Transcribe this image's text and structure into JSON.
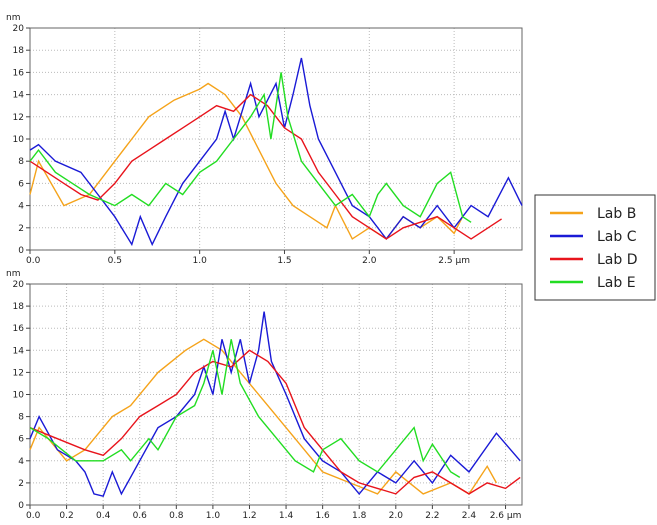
{
  "chart_data": [
    {
      "type": "line",
      "y_unit": "nm",
      "legend": "right",
      "grid": true,
      "xlim": [
        0,
        2.9
      ],
      "ylim": [
        0,
        20
      ],
      "xticks": [
        {
          "value": 0,
          "label": "0.0"
        },
        0.5,
        {
          "value": 1,
          "label": "1.0"
        },
        1.5,
        {
          "value": 2,
          "label": "2.0"
        },
        {
          "value": 2.5,
          "label": "2.5 µm"
        }
      ],
      "yticks": [
        0,
        2,
        4,
        6,
        8,
        10,
        12,
        14,
        16,
        18,
        20
      ],
      "series": [
        {
          "name": "Lab B",
          "color": "#f5a31a",
          "x": [
            0,
            0.05,
            0.2,
            0.35,
            0.5,
            0.6,
            0.7,
            0.85,
            1.0,
            1.05,
            1.15,
            1.25,
            1.35,
            1.45,
            1.55,
            1.65,
            1.75,
            1.8,
            1.9,
            2.0,
            2.1,
            2.2,
            2.3,
            2.4,
            2.5,
            2.55
          ],
          "values": [
            5,
            8,
            4,
            5,
            8,
            10,
            12,
            13.5,
            14.5,
            15,
            14,
            12,
            9,
            6,
            4,
            3,
            2,
            4,
            1,
            2,
            1,
            3,
            2,
            3,
            1.5,
            3
          ]
        },
        {
          "name": "Lab C",
          "color": "#1a1ad6",
          "x": [
            0,
            0.05,
            0.15,
            0.3,
            0.4,
            0.5,
            0.6,
            0.65,
            0.72,
            0.8,
            0.9,
            1.0,
            1.1,
            1.15,
            1.2,
            1.3,
            1.35,
            1.45,
            1.5,
            1.55,
            1.6,
            1.65,
            1.7,
            1.8,
            1.9,
            2.0,
            2.1,
            2.2,
            2.3,
            2.4,
            2.5,
            2.6,
            2.7,
            2.82,
            2.9
          ],
          "values": [
            9,
            9.5,
            8,
            7,
            5,
            3,
            0.5,
            3,
            0.5,
            3,
            6,
            8,
            10,
            12.5,
            10,
            15,
            12,
            15,
            11,
            14,
            17.3,
            13,
            10,
            7,
            4,
            3,
            1,
            3,
            2,
            4,
            2,
            4,
            3,
            6.5,
            4
          ]
        },
        {
          "name": "Lab D",
          "color": "#e8141c",
          "x": [
            0,
            0.1,
            0.2,
            0.3,
            0.4,
            0.5,
            0.6,
            0.7,
            0.8,
            0.9,
            1.0,
            1.1,
            1.2,
            1.3,
            1.4,
            1.5,
            1.6,
            1.7,
            1.8,
            1.9,
            2.0,
            2.1,
            2.2,
            2.3,
            2.4,
            2.5,
            2.6,
            2.7,
            2.78
          ],
          "values": [
            8,
            7,
            6,
            5,
            4.5,
            6,
            8,
            9,
            10,
            11,
            12,
            13,
            12.5,
            14,
            13,
            11,
            10,
            7,
            5,
            3,
            2,
            1,
            2,
            2.5,
            3,
            2,
            1,
            2,
            2.8
          ]
        },
        {
          "name": "Lab E",
          "color": "#22dd22",
          "x": [
            0,
            0.05,
            0.15,
            0.25,
            0.35,
            0.5,
            0.6,
            0.7,
            0.8,
            0.9,
            1.0,
            1.1,
            1.2,
            1.3,
            1.38,
            1.42,
            1.48,
            1.52,
            1.6,
            1.7,
            1.8,
            1.9,
            2.0,
            2.05,
            2.1,
            2.2,
            2.3,
            2.4,
            2.48,
            2.55,
            2.6
          ],
          "values": [
            8,
            9,
            7,
            6,
            5,
            4,
            5,
            4,
            6,
            5,
            7,
            8,
            10,
            12,
            14,
            10,
            16,
            12,
            8,
            6,
            4,
            5,
            3,
            5,
            6,
            4,
            3,
            6,
            7,
            3,
            2.5
          ]
        }
      ]
    },
    {
      "type": "line",
      "y_unit": "nm",
      "grid": true,
      "xlim": [
        0,
        2.69
      ],
      "ylim": [
        0,
        20
      ],
      "xticks": [
        {
          "value": 0,
          "label": "0.0"
        },
        0.2,
        0.4,
        0.6,
        0.8,
        {
          "value": 1,
          "label": "1.0"
        },
        1.2,
        1.4,
        1.6,
        1.8,
        {
          "value": 2,
          "label": "2.0"
        },
        2.2,
        2.4,
        {
          "value": 2.6,
          "label": "2.6 µm"
        }
      ],
      "yticks": [
        0,
        2,
        4,
        6,
        8,
        10,
        12,
        14,
        16,
        18,
        20
      ],
      "series": [
        {
          "name": "Lab B",
          "color": "#f5a31a",
          "x": [
            0,
            0.05,
            0.2,
            0.3,
            0.45,
            0.55,
            0.7,
            0.85,
            0.95,
            1.05,
            1.15,
            1.3,
            1.45,
            1.6,
            1.75,
            1.9,
            2.0,
            2.15,
            2.3,
            2.4,
            2.5,
            2.55
          ],
          "values": [
            5,
            7,
            4,
            5,
            8,
            9,
            12,
            14,
            15,
            14,
            12,
            9,
            6,
            3,
            2,
            1,
            3,
            1,
            2,
            1,
            3.5,
            2
          ]
        },
        {
          "name": "Lab C",
          "color": "#1a1ad6",
          "x": [
            0,
            0.05,
            0.15,
            0.25,
            0.3,
            0.35,
            0.4,
            0.45,
            0.5,
            0.6,
            0.7,
            0.8,
            0.9,
            0.95,
            1.0,
            1.05,
            1.1,
            1.15,
            1.2,
            1.25,
            1.28,
            1.32,
            1.4,
            1.5,
            1.6,
            1.7,
            1.8,
            1.9,
            2.0,
            2.1,
            2.2,
            2.3,
            2.4,
            2.55,
            2.68
          ],
          "values": [
            6,
            8,
            5,
            4,
            3,
            1,
            0.8,
            3,
            1,
            4,
            7,
            8,
            10,
            12.5,
            10,
            15,
            12,
            15,
            11,
            14,
            17.5,
            13,
            10,
            6,
            4,
            3,
            1,
            3,
            2,
            4,
            2,
            4.5,
            3,
            6.5,
            4
          ]
        },
        {
          "name": "Lab D",
          "color": "#e8141c",
          "x": [
            0,
            0.15,
            0.3,
            0.4,
            0.5,
            0.6,
            0.7,
            0.8,
            0.9,
            1.0,
            1.1,
            1.2,
            1.3,
            1.4,
            1.5,
            1.6,
            1.7,
            1.8,
            1.9,
            2.0,
            2.1,
            2.2,
            2.3,
            2.4,
            2.5,
            2.6,
            2.68
          ],
          "values": [
            7,
            6,
            5,
            4.5,
            6,
            8,
            9,
            10,
            12,
            13,
            12.5,
            14,
            13,
            11,
            7,
            5,
            3,
            2,
            1.5,
            1,
            2.5,
            3,
            2,
            1,
            2,
            1.5,
            2.5
          ]
        },
        {
          "name": "Lab E",
          "color": "#22dd22",
          "x": [
            0,
            0.1,
            0.25,
            0.4,
            0.5,
            0.55,
            0.65,
            0.7,
            0.8,
            0.9,
            0.95,
            1.0,
            1.05,
            1.1,
            1.15,
            1.25,
            1.35,
            1.45,
            1.55,
            1.6,
            1.7,
            1.8,
            1.9,
            2.0,
            2.1,
            2.15,
            2.2,
            2.3,
            2.35
          ],
          "values": [
            7,
            6,
            4,
            4,
            5,
            4,
            6,
            5,
            8,
            9,
            11,
            14,
            10,
            15,
            11,
            8,
            6,
            4,
            3,
            5,
            6,
            4,
            3,
            5,
            7,
            4,
            5.5,
            3,
            2.5
          ]
        }
      ]
    }
  ]
}
